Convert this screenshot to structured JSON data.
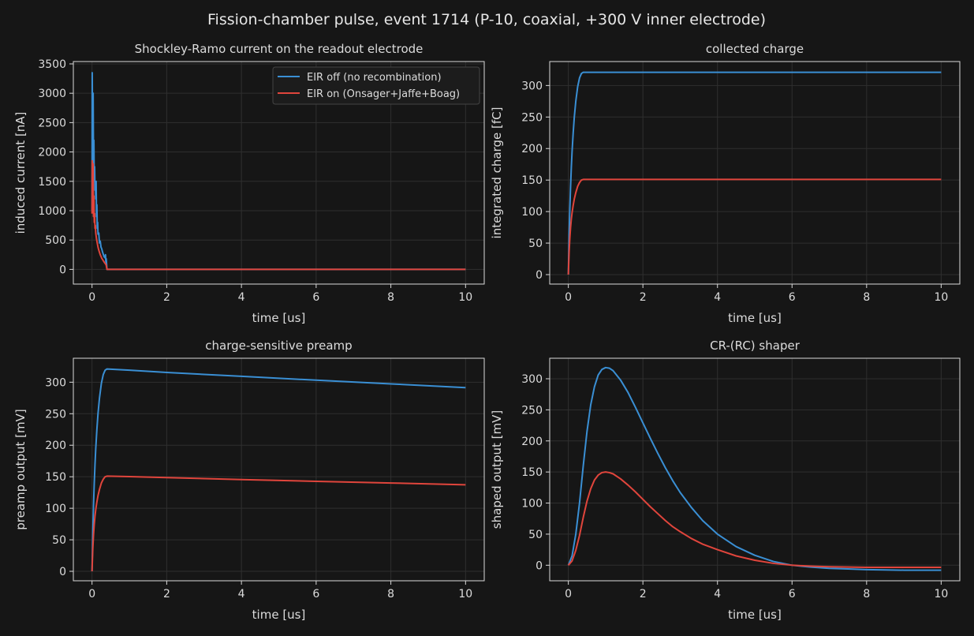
{
  "figure": {
    "title": "Fission-chamber pulse, event 1714 (P-10, coaxial, +300 V inner electrode)"
  },
  "colors": {
    "background": "#161616",
    "panel": "#161616",
    "axis": "#d9d9d9",
    "grid": "#2f2f2f",
    "text": "#dcdcdc",
    "eir_off": "#3a8fd4",
    "eir_on": "#e0453c"
  },
  "legend": {
    "panel": 0,
    "placement": "top-right",
    "entries": [
      "EIR off (no recombination)",
      "EIR on (Onsager+Jaffe+Boag)"
    ]
  },
  "chart_data": [
    {
      "type": "line",
      "title": "Shockley-Ramo current on the readout electrode",
      "xlabel": "time [us]",
      "ylabel": "induced current [nA]",
      "xlim": [
        -0.5,
        10.5
      ],
      "ylim": [
        -250,
        3540
      ],
      "xticks": [
        0,
        2,
        4,
        6,
        8,
        10
      ],
      "yticks": [
        0,
        500,
        1000,
        1500,
        2000,
        2500,
        3000,
        3500
      ],
      "grid": true,
      "series": [
        {
          "name": "EIR off (no recombination)",
          "color": "#3a8fd4",
          "x": [
            0,
            0.005,
            0.01,
            0.02,
            0.03,
            0.04,
            0.05,
            0.06,
            0.07,
            0.08,
            0.09,
            0.1,
            0.11,
            0.12,
            0.13,
            0.14,
            0.15,
            0.16,
            0.18,
            0.2,
            0.22,
            0.24,
            0.26,
            0.28,
            0.3,
            0.32,
            0.34,
            0.36,
            0.37,
            0.38,
            0.4,
            0.5,
            1,
            2,
            4,
            6,
            8,
            10
          ],
          "y": [
            1000,
            3350,
            2900,
            2400,
            3000,
            1800,
            2200,
            1500,
            1750,
            1350,
            1450,
            1200,
            1500,
            900,
            1100,
            700,
            800,
            600,
            620,
            450,
            480,
            380,
            350,
            300,
            260,
            220,
            200,
            250,
            130,
            180,
            0,
            0,
            0,
            0,
            0,
            0,
            0,
            0
          ]
        },
        {
          "name": "EIR on (Onsager+Jaffe+Boag)",
          "color": "#e0453c",
          "x": [
            0,
            0.005,
            0.01,
            0.02,
            0.03,
            0.04,
            0.05,
            0.06,
            0.07,
            0.08,
            0.09,
            0.1,
            0.12,
            0.14,
            0.16,
            0.18,
            0.2,
            0.22,
            0.24,
            0.26,
            0.28,
            0.3,
            0.32,
            0.34,
            0.36,
            0.38,
            0.4,
            0.5,
            1,
            2,
            4,
            6,
            8,
            10
          ],
          "y": [
            950,
            1850,
            1400,
            1100,
            1800,
            900,
            1250,
            800,
            950,
            700,
            750,
            620,
            520,
            450,
            380,
            330,
            290,
            250,
            220,
            190,
            170,
            150,
            130,
            110,
            95,
            70,
            0,
            0,
            0,
            0,
            0,
            0,
            0,
            0
          ]
        }
      ]
    },
    {
      "type": "line",
      "title": "collected charge",
      "xlabel": "time [us]",
      "ylabel": "integrated charge [fC]",
      "xlim": [
        -0.5,
        10.5
      ],
      "ylim": [
        -15,
        338
      ],
      "xticks": [
        0,
        2,
        4,
        6,
        8,
        10
      ],
      "yticks": [
        0,
        50,
        100,
        150,
        200,
        250,
        300
      ],
      "grid": true,
      "series": [
        {
          "name": "EIR off (no recombination)",
          "color": "#3a8fd4",
          "x": [
            0,
            0.02,
            0.04,
            0.06,
            0.08,
            0.1,
            0.13,
            0.16,
            0.2,
            0.25,
            0.3,
            0.35,
            0.4,
            1,
            2,
            4,
            6,
            8,
            10
          ],
          "y": [
            0,
            60,
            105,
            140,
            170,
            195,
            225,
            250,
            275,
            298,
            312,
            319,
            321,
            321,
            321,
            321,
            321,
            321,
            321
          ]
        },
        {
          "name": "EIR on (Onsager+Jaffe+Boag)",
          "color": "#e0453c",
          "x": [
            0,
            0.02,
            0.04,
            0.06,
            0.08,
            0.1,
            0.13,
            0.16,
            0.2,
            0.25,
            0.3,
            0.35,
            0.4,
            1,
            2,
            4,
            6,
            8,
            10
          ],
          "y": [
            0,
            35,
            58,
            75,
            88,
            98,
            110,
            120,
            130,
            140,
            146,
            150,
            151,
            151,
            151,
            151,
            151,
            151,
            151
          ]
        }
      ]
    },
    {
      "type": "line",
      "title": "charge-sensitive preamp",
      "xlabel": "time [us]",
      "ylabel": "preamp output [mV]",
      "xlim": [
        -0.5,
        10.5
      ],
      "ylim": [
        -15,
        338
      ],
      "xticks": [
        0,
        2,
        4,
        6,
        8,
        10
      ],
      "yticks": [
        0,
        50,
        100,
        150,
        200,
        250,
        300
      ],
      "grid": true,
      "series": [
        {
          "name": "EIR off (no recombination)",
          "color": "#3a8fd4",
          "x": [
            0,
            0.02,
            0.04,
            0.06,
            0.08,
            0.1,
            0.13,
            0.16,
            0.2,
            0.25,
            0.3,
            0.35,
            0.4,
            1,
            2,
            4,
            6,
            8,
            10
          ],
          "y": [
            0,
            60,
            105,
            140,
            170,
            195,
            225,
            250,
            275,
            298,
            312,
            319,
            321,
            319,
            315.5,
            309.3,
            303.2,
            297.3,
            291.4
          ]
        },
        {
          "name": "EIR on (Onsager+Jaffe+Boag)",
          "color": "#e0453c",
          "x": [
            0,
            0.02,
            0.04,
            0.06,
            0.08,
            0.1,
            0.13,
            0.16,
            0.2,
            0.25,
            0.3,
            0.35,
            0.4,
            1,
            2,
            4,
            6,
            8,
            10
          ],
          "y": [
            0,
            35,
            58,
            75,
            88,
            98,
            110,
            120,
            130,
            140,
            146,
            150,
            151,
            150.2,
            148.6,
            145.6,
            142.8,
            140.1,
            137.3
          ]
        }
      ]
    },
    {
      "type": "line",
      "title": "CR-(RC) shaper",
      "xlabel": "time [us]",
      "ylabel": "shaped output [mV]",
      "xlim": [
        -0.5,
        10.5
      ],
      "ylim": [
        -25,
        333
      ],
      "xticks": [
        0,
        2,
        4,
        6,
        8,
        10
      ],
      "yticks": [
        0,
        50,
        100,
        150,
        200,
        250,
        300
      ],
      "grid": true,
      "series": [
        {
          "name": "EIR off (no recombination)",
          "color": "#3a8fd4",
          "x": [
            0,
            0.1,
            0.2,
            0.3,
            0.4,
            0.5,
            0.6,
            0.7,
            0.8,
            0.9,
            1.0,
            1.1,
            1.2,
            1.4,
            1.6,
            1.8,
            2.0,
            2.2,
            2.4,
            2.6,
            2.8,
            3.0,
            3.3,
            3.6,
            4.0,
            4.5,
            5.0,
            5.5,
            6.0,
            6.5,
            7.0,
            7.5,
            8.0,
            8.5,
            9.0,
            9.5,
            10.0
          ],
          "y": [
            0,
            15,
            50,
            100,
            160,
            215,
            258,
            287,
            306,
            315,
            318,
            317,
            313,
            298,
            278,
            254,
            229,
            204,
            180,
            157,
            136,
            117,
            93,
            72,
            50,
            30,
            16,
            6,
            0,
            -3,
            -5,
            -6,
            -7,
            -7.5,
            -8,
            -8,
            -8
          ]
        },
        {
          "name": "EIR on (Onsager+Jaffe+Boag)",
          "color": "#e0453c",
          "x": [
            0,
            0.1,
            0.2,
            0.3,
            0.4,
            0.5,
            0.6,
            0.7,
            0.8,
            0.9,
            1.0,
            1.1,
            1.2,
            1.4,
            1.6,
            1.8,
            2.0,
            2.2,
            2.4,
            2.6,
            2.8,
            3.0,
            3.3,
            3.6,
            4.0,
            4.5,
            5.0,
            5.5,
            6.0,
            6.5,
            7.0,
            7.5,
            8.0,
            8.5,
            9.0,
            9.5,
            10.0
          ],
          "y": [
            0,
            7,
            24,
            48,
            77,
            103,
            123,
            137,
            145,
            149,
            150,
            149,
            147,
            139,
            129,
            118,
            106,
            94,
            83,
            72,
            62,
            54,
            43,
            34,
            25,
            15,
            8,
            3,
            0,
            -1.5,
            -2.5,
            -3,
            -3.5,
            -3.5,
            -3.5,
            -3.5,
            -3.5
          ]
        }
      ]
    }
  ]
}
